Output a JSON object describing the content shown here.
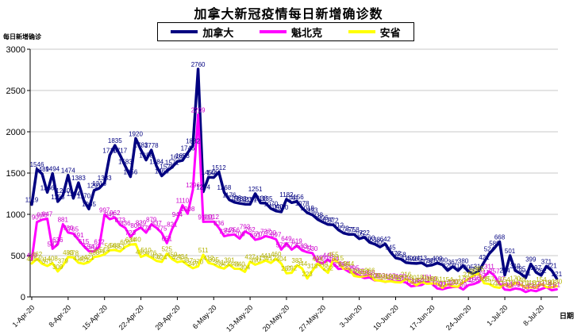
{
  "page": {
    "background": "#ffffff"
  },
  "chart_data": {
    "type": "line",
    "title": "加拿大新冠疫情每日新增确诊数",
    "xlabel": "日期",
    "ylabel": "每日新增确诊",
    "ylim": [
      0,
      3000
    ],
    "ytick_interval": 500,
    "ytick_labels": [
      "0",
      "500",
      "1000",
      "1500",
      "2000",
      "2500",
      "3000"
    ],
    "grid": "horizontal",
    "legend_position": "top-center",
    "points_are_daily": true,
    "x_tick_every_n_points": 7,
    "x_tick_labels": [
      "1-Apr-20",
      "8-Apr-20",
      "15-Apr-20",
      "22-Apr-20",
      "29-Apr-20",
      "6-May-20",
      "13-May-20",
      "20-May-20",
      "27-May-20",
      "3-Jun-20",
      "10-Jun-20",
      "17-Jun-20",
      "24-Jun-20",
      "1-Jul-20",
      "8-Jul-20"
    ],
    "series": [
      {
        "name": "加拿大",
        "color": "#000080",
        "label_color": "#000080",
        "line_width": 3.5,
        "values": [
          1119,
          1546,
          1489,
          1266,
          1494,
          1155,
          1230,
          1474,
          1194,
          1383,
          1170,
          1065,
          1291,
          1316,
          1383,
          1716,
          1835,
          1717,
          1583,
          1456,
          1920,
          1783,
          1658,
          1778,
          1584,
          1466,
          1526,
          1571,
          1639,
          1653,
          1746,
          1832,
          2760,
          1274,
          1450,
          1446,
          1512,
          1268,
          1176,
          1146,
          1133,
          1123,
          1121,
          1251,
          1138,
          1135,
          1070,
          1040,
          1030,
          1182,
          1141,
          1156,
          1078,
          1019,
          993,
          938,
          906,
          877,
          872,
          812,
          772,
          757,
          758,
          705,
          722,
          660,
          638,
          605,
          642,
          545,
          472,
          458,
          415,
          409,
          405,
          413,
          376,
          386,
          409,
          390,
          320,
          367,
          318,
          380,
          305,
          279,
          312,
          421,
          524,
          589,
          668,
          264,
          501,
          319,
          285,
          231,
          399,
          297,
          262,
          371,
          321,
          221
        ]
      },
      {
        "name": "魁北克",
        "color": "#ff00ff",
        "label_color": "#cc00cc",
        "line_width": 3,
        "values": [
          449,
          907,
          936,
          947,
          583,
          636,
          881,
          780,
          765,
          691,
          615,
          554,
          550,
          612,
          997,
          941,
          962,
          873,
          836,
          723,
          806,
          839,
          778,
          879,
          837,
          775,
          651,
          821,
          944,
          1110,
          1008,
          1296,
          2209,
          910,
          911,
          912,
          836,
          735,
          749,
          756,
          706,
          793,
          762,
          691,
          707,
          737,
          720,
          697,
          573,
          649,
          573,
          619,
          563,
          541,
          530,
          419,
          409,
          448,
          404,
          338,
          344,
          304,
          295,
          255,
          228,
          236,
          199,
          203,
          182,
          197,
          184,
          190,
          174,
          129,
          138,
          144,
          181,
          159,
          102,
          92,
          111,
          120,
          124,
          89,
          142,
          156,
          180,
          241,
          311,
          257,
          157,
          89,
          83,
          102,
          94,
          60,
          82,
          69,
          94,
          118,
          81,
          91
        ]
      },
      {
        "name": "安省",
        "color": "#ffff00",
        "label_color": "#b3b300",
        "line_width": 3,
        "values": [
          405,
          462,
          401,
          375,
          408,
          309,
          379,
          483,
          478,
          414,
          401,
          421,
          483,
          494,
          514,
          564,
          568,
          551,
          606,
          634,
          640,
          485,
          510,
          476,
          437,
          424,
          525,
          459,
          421,
          434,
          387,
          347,
          370,
          511,
          412,
          395,
          361,
          343,
          391,
          341,
          340,
          304,
          427,
          390,
          413,
          441,
          412,
          460,
          404,
          287,
          292,
          383,
          344,
          223,
          318,
          404,
          344,
          292,
          455,
          415,
          338,
          344,
          255,
          243,
          251,
          266,
          203,
          197,
          184,
          190,
          178,
          175,
          216,
          180,
          142,
          181,
          159,
          163,
          161,
          111,
          154,
          129,
          124,
          175,
          216,
          257,
          285,
          165,
          157,
          121,
          111,
          154,
          118,
          170,
          149,
          111,
          116,
          112,
          154,
          119,
          116,
          130
        ]
      }
    ]
  }
}
